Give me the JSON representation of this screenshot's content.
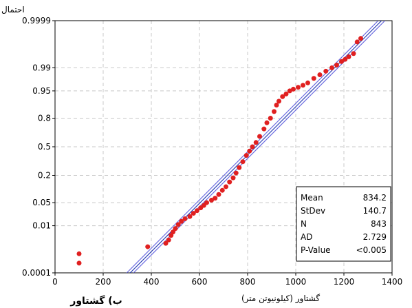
{
  "chart_data": {
    "type": "scatter",
    "subtype": "normal-probability-plot",
    "y_scale": "normal-probability",
    "ylabel": "احتمال",
    "xlabel": "گشتاور (کیلونیوتن متر)",
    "caption": "ب) گشتاور",
    "xlim": [
      0,
      1400
    ],
    "ylim": [
      0.0001,
      0.9999
    ],
    "x_ticks": [
      0,
      200,
      400,
      600,
      800,
      1000,
      1200,
      1400
    ],
    "y_ticks": [
      0.0001,
      0.01,
      0.05,
      0.2,
      0.5,
      0.8,
      0.95,
      0.99,
      0.9999
    ],
    "y_tick_labels": [
      "0.0001",
      "0.01",
      "0.05",
      "0.2",
      "0.5",
      "0.8",
      "0.95",
      "0.99",
      "0.9999"
    ],
    "grid": true,
    "legend": "none",
    "stats": [
      {
        "label": "Mean",
        "value": "834.2"
      },
      {
        "label": "StDev",
        "value": "140.7"
      },
      {
        "label": "N",
        "value": "843"
      },
      {
        "label": "AD",
        "value": "2.729"
      },
      {
        "label": "P-Value",
        "value": "<0.005"
      }
    ],
    "fit_line": {
      "mean": 834.2,
      "stdev": 140.7
    },
    "points": [
      [
        100,
        0.0008
      ],
      [
        100,
        0.0003
      ],
      [
        385,
        0.0016
      ],
      [
        460,
        0.0022
      ],
      [
        472,
        0.003
      ],
      [
        482,
        0.0045
      ],
      [
        490,
        0.006
      ],
      [
        500,
        0.008
      ],
      [
        512,
        0.011
      ],
      [
        525,
        0.014
      ],
      [
        540,
        0.017
      ],
      [
        560,
        0.02
      ],
      [
        575,
        0.025
      ],
      [
        590,
        0.03
      ],
      [
        605,
        0.036
      ],
      [
        618,
        0.042
      ],
      [
        630,
        0.05
      ],
      [
        650,
        0.058
      ],
      [
        665,
        0.065
      ],
      [
        680,
        0.08
      ],
      [
        695,
        0.1
      ],
      [
        710,
        0.12
      ],
      [
        725,
        0.15
      ],
      [
        740,
        0.18
      ],
      [
        752,
        0.22
      ],
      [
        765,
        0.27
      ],
      [
        780,
        0.33
      ],
      [
        795,
        0.4
      ],
      [
        808,
        0.45
      ],
      [
        820,
        0.5
      ],
      [
        835,
        0.55
      ],
      [
        850,
        0.62
      ],
      [
        868,
        0.7
      ],
      [
        880,
        0.76
      ],
      [
        895,
        0.8
      ],
      [
        910,
        0.85
      ],
      [
        920,
        0.89
      ],
      [
        930,
        0.91
      ],
      [
        945,
        0.93
      ],
      [
        960,
        0.94
      ],
      [
        975,
        0.95
      ],
      [
        990,
        0.955
      ],
      [
        1010,
        0.96
      ],
      [
        1030,
        0.965
      ],
      [
        1050,
        0.97
      ],
      [
        1075,
        0.978
      ],
      [
        1100,
        0.983
      ],
      [
        1125,
        0.987
      ],
      [
        1150,
        0.99
      ],
      [
        1170,
        0.992
      ],
      [
        1190,
        0.994
      ],
      [
        1205,
        0.995
      ],
      [
        1220,
        0.996
      ],
      [
        1240,
        0.997
      ],
      [
        1255,
        0.999
      ],
      [
        1270,
        0.9993
      ]
    ]
  },
  "colors": {
    "points": "#e02020",
    "fit_line": "#2a3fb5",
    "ci_lines": "#6a6ae0",
    "grid": "#c8c8c8"
  }
}
